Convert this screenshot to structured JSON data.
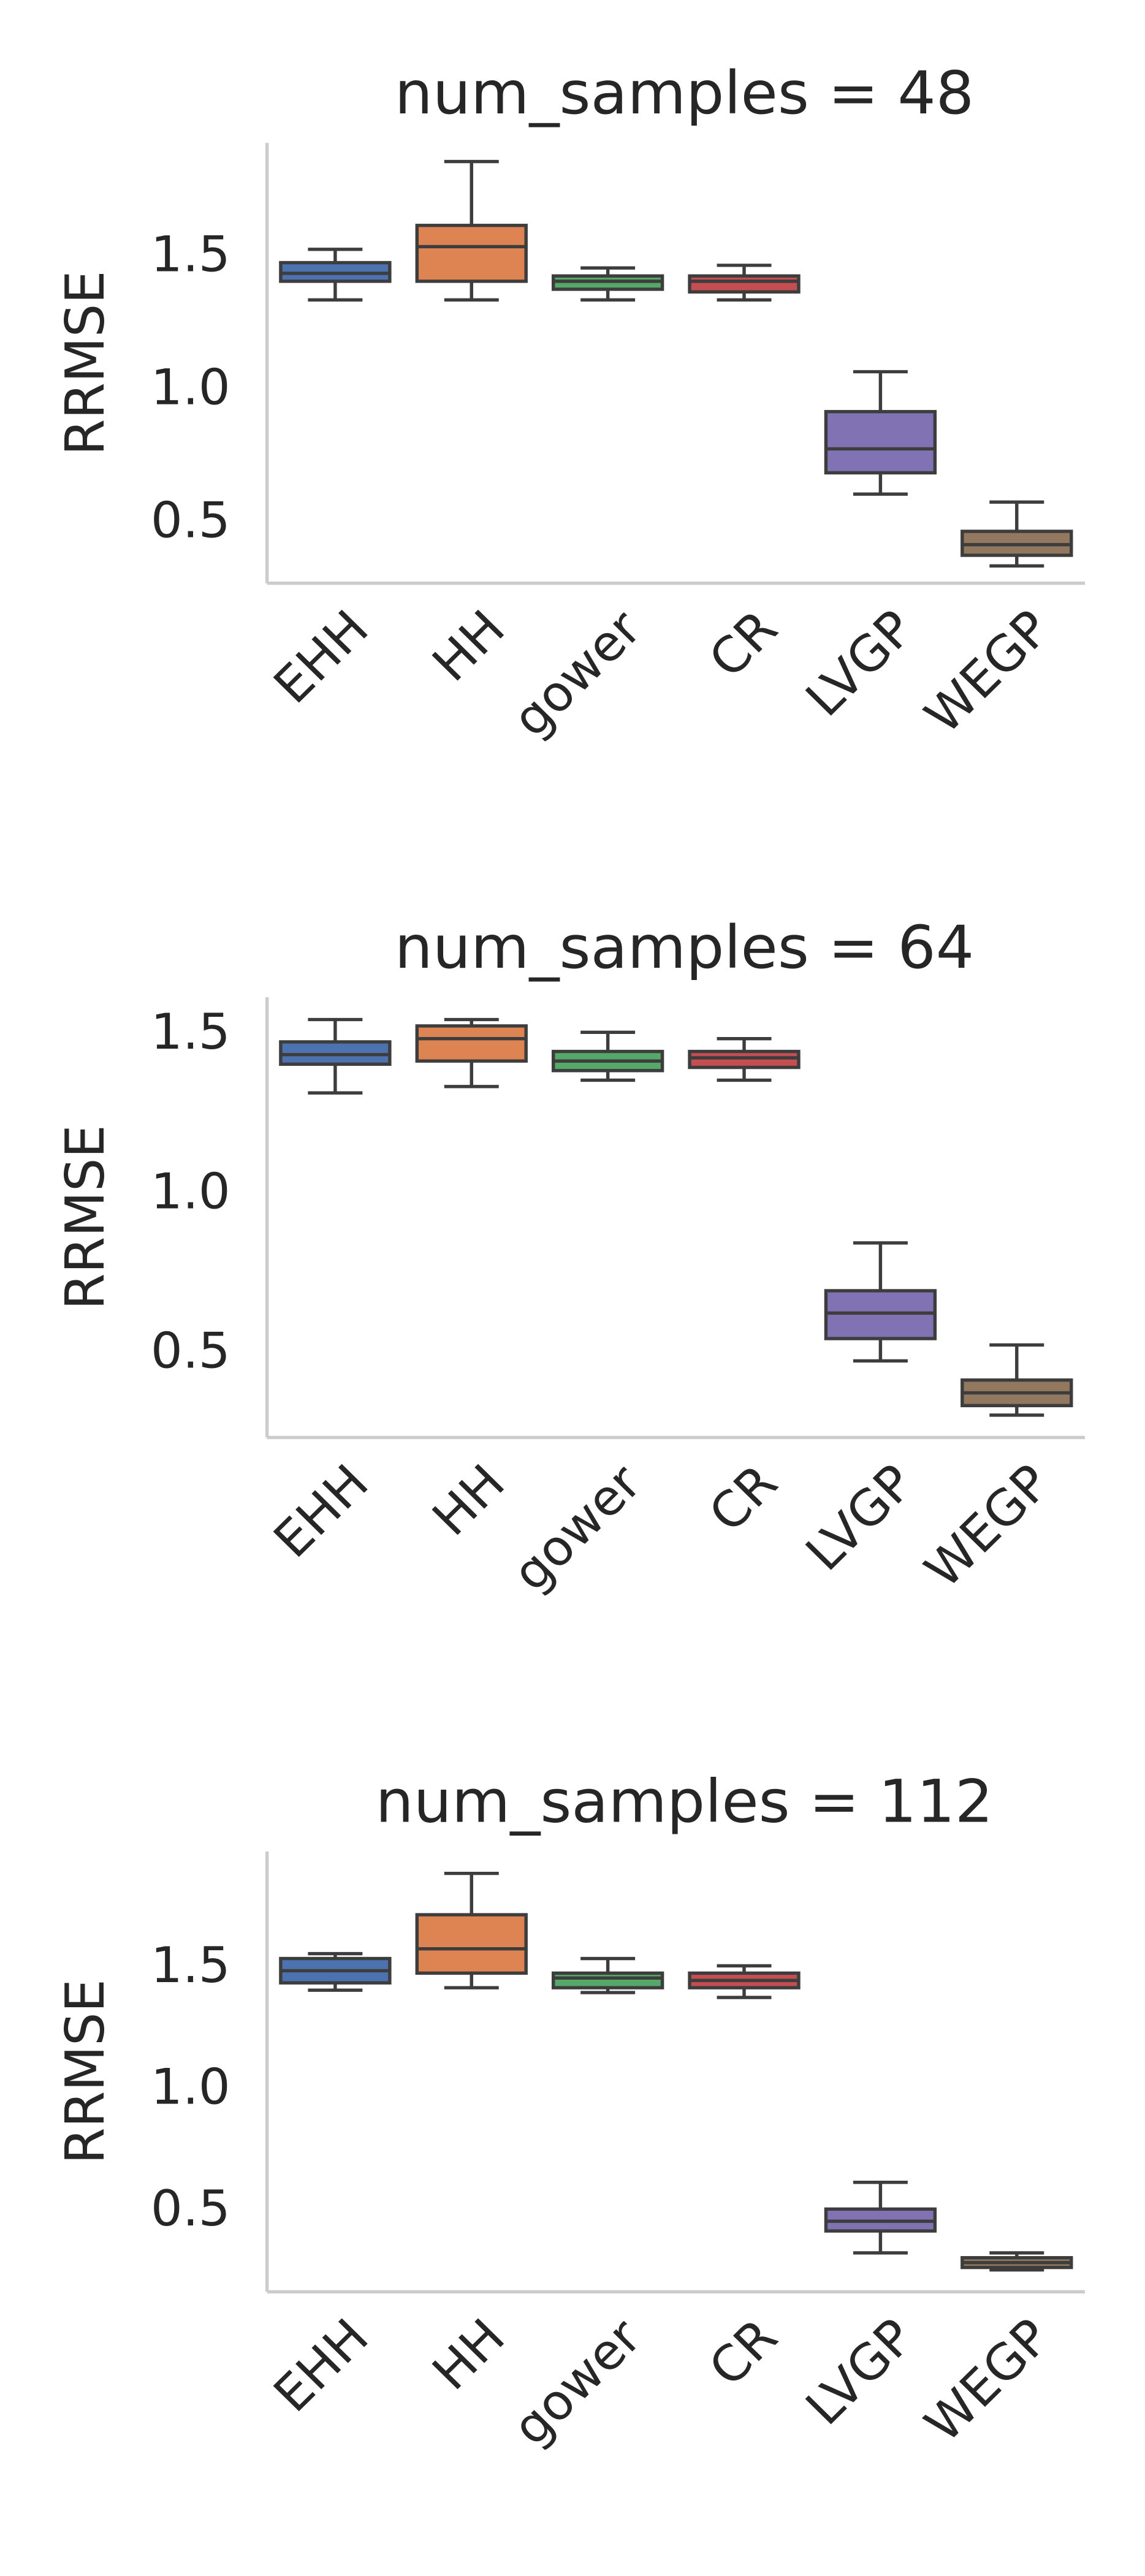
{
  "chart_data": [
    {
      "type": "box",
      "title": "num_samples = 48",
      "y_label": "RRMSE",
      "categories": [
        "EHH",
        "HH",
        "gower",
        "CR",
        "LVGP",
        "WEGP"
      ],
      "colors": [
        "#4c72b0",
        "#dd8452",
        "#55a868",
        "#c44e52",
        "#8172b3",
        "#937860"
      ],
      "values": [
        [
          1.33,
          1.4,
          1.43,
          1.47,
          1.52
        ],
        [
          1.33,
          1.4,
          1.53,
          1.61,
          1.85
        ],
        [
          1.33,
          1.37,
          1.4,
          1.42,
          1.45
        ],
        [
          1.33,
          1.36,
          1.4,
          1.42,
          1.46
        ],
        [
          0.6,
          0.68,
          0.77,
          0.91,
          1.06
        ],
        [
          0.33,
          0.37,
          0.41,
          0.46,
          0.57
        ]
      ],
      "ylim": [
        0.265,
        1.92
      ],
      "yticks": [
        0.5,
        {
          "value": 1,
          "label": "1.0"
        },
        1.5
      ],
      "grid": false
    },
    {
      "type": "box",
      "title": "num_samples = 64",
      "y_label": "RRMSE",
      "categories": [
        "EHH",
        "HH",
        "gower",
        "CR",
        "LVGP",
        "WEGP"
      ],
      "colors": [
        "#4c72b0",
        "#dd8452",
        "#55a868",
        "#c44e52",
        "#8172b3",
        "#937860"
      ],
      "values": [
        [
          1.31,
          1.4,
          1.43,
          1.47,
          1.54
        ],
        [
          1.33,
          1.41,
          1.48,
          1.52,
          1.54
        ],
        [
          1.35,
          1.38,
          1.41,
          1.44,
          1.5
        ],
        [
          1.35,
          1.39,
          1.42,
          1.44,
          1.48
        ],
        [
          0.47,
          0.54,
          0.62,
          0.69,
          0.84
        ],
        [
          0.3,
          0.33,
          0.37,
          0.41,
          0.52
        ]
      ],
      "ylim": [
        0.23,
        1.61
      ],
      "yticks": [
        0.5,
        {
          "value": 1,
          "label": "1.0"
        },
        1.5
      ],
      "grid": false
    },
    {
      "type": "box",
      "title": "num_samples = 112",
      "y_label": "RRMSE",
      "categories": [
        "EHH",
        "HH",
        "gower",
        "CR",
        "LVGP",
        "WEGP"
      ],
      "colors": [
        "#4c72b0",
        "#dd8452",
        "#55a868",
        "#c44e52",
        "#8172b3",
        "#937860"
      ],
      "values": [
        [
          1.4,
          1.43,
          1.48,
          1.53,
          1.55
        ],
        [
          1.41,
          1.47,
          1.57,
          1.71,
          1.88
        ],
        [
          1.39,
          1.41,
          1.45,
          1.47,
          1.53
        ],
        [
          1.37,
          1.41,
          1.44,
          1.47,
          1.5
        ],
        [
          0.32,
          0.41,
          0.45,
          0.5,
          0.61
        ],
        [
          0.25,
          0.26,
          0.28,
          0.3,
          0.32
        ]
      ],
      "ylim": [
        0.16,
        1.97
      ],
      "yticks": [
        0.5,
        {
          "value": 1,
          "label": "1.0"
        },
        1.5
      ],
      "grid": false
    }
  ]
}
